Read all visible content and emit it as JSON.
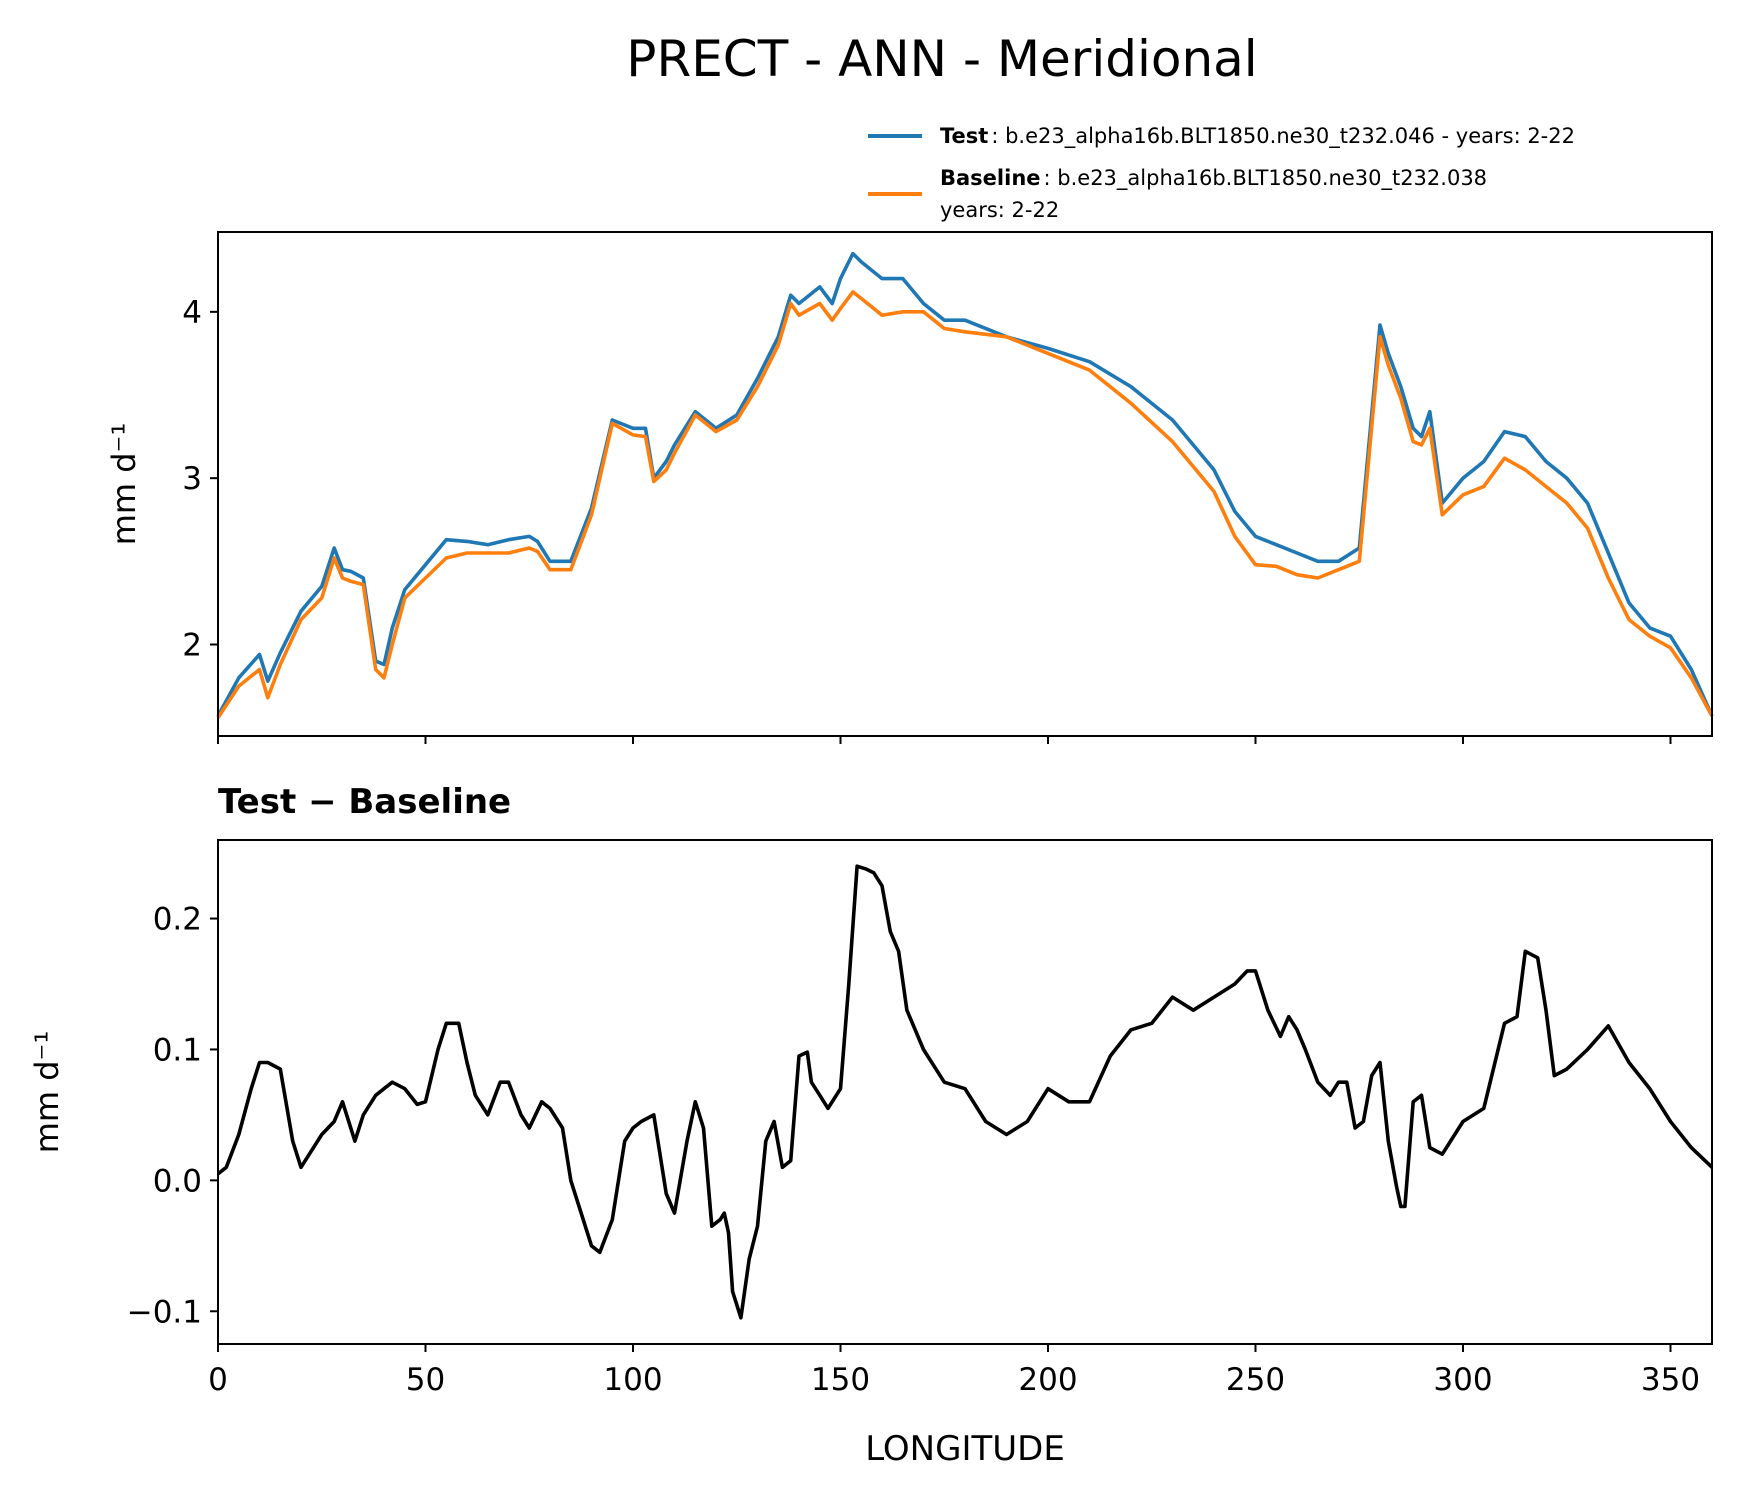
{
  "figure_title": "PRECT - ANN - Meridional",
  "legend": {
    "test_name": "Test",
    "test_desc": ": b.e23_alpha16b.BLT1850.ne30_t232.046 - years: 2-22",
    "baseline_name": "Baseline",
    "baseline_desc_line1": ": b.e23_alpha16b.BLT1850.ne30_t232.038",
    "baseline_desc_line2": "years: 2-22"
  },
  "diff_title": "Test − Baseline",
  "colors": {
    "test": "#1f77b4",
    "baseline": "#ff7f0e",
    "diff": "#000000"
  },
  "chart_data": [
    {
      "type": "line",
      "title": "",
      "xlabel": "",
      "ylabel": "mm d⁻¹",
      "xlim": [
        0,
        360
      ],
      "ylim": [
        1.45,
        4.48
      ],
      "yticks": [
        2,
        3,
        4
      ],
      "yticklabels": [
        "2",
        "3",
        "4"
      ],
      "xticks": [
        0,
        50,
        100,
        150,
        200,
        250,
        300,
        350
      ],
      "x": [
        0,
        5,
        10,
        12,
        15,
        20,
        25,
        28,
        30,
        32,
        35,
        38,
        40,
        42,
        45,
        50,
        55,
        60,
        65,
        70,
        75,
        77,
        80,
        85,
        90,
        95,
        100,
        103,
        105,
        108,
        110,
        115,
        120,
        125,
        130,
        135,
        138,
        140,
        145,
        148,
        150,
        153,
        155,
        160,
        165,
        170,
        175,
        180,
        190,
        200,
        210,
        220,
        230,
        240,
        245,
        250,
        255,
        260,
        265,
        270,
        275,
        280,
        282,
        285,
        288,
        290,
        292,
        295,
        300,
        305,
        310,
        315,
        320,
        325,
        330,
        335,
        340,
        345,
        350,
        355,
        360
      ],
      "series": [
        {
          "name": "Test",
          "values": [
            1.57,
            1.8,
            1.94,
            1.78,
            1.95,
            2.2,
            2.35,
            2.58,
            2.45,
            2.44,
            2.4,
            1.9,
            1.88,
            2.1,
            2.33,
            2.48,
            2.63,
            2.62,
            2.6,
            2.63,
            2.65,
            2.62,
            2.5,
            2.5,
            2.82,
            3.35,
            3.3,
            3.3,
            3.0,
            3.1,
            3.2,
            3.4,
            3.3,
            3.38,
            3.6,
            3.85,
            4.1,
            4.05,
            4.15,
            4.05,
            4.2,
            4.35,
            4.3,
            4.2,
            4.2,
            4.05,
            3.95,
            3.95,
            3.85,
            3.78,
            3.7,
            3.55,
            3.35,
            3.05,
            2.8,
            2.65,
            2.6,
            2.55,
            2.5,
            2.5,
            2.58,
            3.92,
            3.75,
            3.55,
            3.3,
            3.25,
            3.4,
            2.85,
            3.0,
            3.1,
            3.28,
            3.25,
            3.1,
            3.0,
            2.85,
            2.55,
            2.25,
            2.1,
            2.05,
            1.85,
            1.57
          ]
        },
        {
          "name": "Baseline",
          "values": [
            1.56,
            1.75,
            1.85,
            1.68,
            1.88,
            2.15,
            2.28,
            2.52,
            2.4,
            2.38,
            2.36,
            1.85,
            1.8,
            2.0,
            2.28,
            2.4,
            2.52,
            2.55,
            2.55,
            2.55,
            2.58,
            2.56,
            2.45,
            2.45,
            2.78,
            3.33,
            3.26,
            3.25,
            2.98,
            3.05,
            3.15,
            3.38,
            3.28,
            3.35,
            3.55,
            3.8,
            4.05,
            3.98,
            4.05,
            3.95,
            4.02,
            4.12,
            4.08,
            3.98,
            4.0,
            4.0,
            3.9,
            3.88,
            3.85,
            3.75,
            3.65,
            3.45,
            3.22,
            2.92,
            2.65,
            2.48,
            2.47,
            2.42,
            2.4,
            2.45,
            2.5,
            3.85,
            3.68,
            3.48,
            3.22,
            3.2,
            3.3,
            2.78,
            2.9,
            2.95,
            3.12,
            3.05,
            2.95,
            2.85,
            2.7,
            2.4,
            2.15,
            2.05,
            1.98,
            1.8,
            1.57
          ]
        }
      ]
    },
    {
      "type": "line",
      "title": "Test − Baseline",
      "xlabel": "LONGITUDE",
      "ylabel": "mm d⁻¹",
      "xlim": [
        0,
        360
      ],
      "ylim": [
        -0.125,
        0.26
      ],
      "yticks": [
        -0.1,
        0.0,
        0.1,
        0.2
      ],
      "yticklabels": [
        "−0.1",
        "0.0",
        "0.1",
        "0.2"
      ],
      "xticks": [
        0,
        50,
        100,
        150,
        200,
        250,
        300,
        350
      ],
      "xticklabels": [
        "0",
        "50",
        "100",
        "150",
        "200",
        "250",
        "300",
        "350"
      ],
      "x": [
        0,
        2,
        5,
        8,
        10,
        12,
        15,
        18,
        20,
        22,
        25,
        28,
        30,
        33,
        35,
        38,
        40,
        42,
        45,
        48,
        50,
        53,
        55,
        58,
        60,
        62,
        65,
        68,
        70,
        73,
        75,
        78,
        80,
        83,
        85,
        88,
        90,
        92,
        95,
        98,
        100,
        102,
        105,
        108,
        110,
        113,
        115,
        117,
        119,
        121,
        122,
        123,
        124,
        126,
        128,
        130,
        132,
        134,
        136,
        138,
        140,
        142,
        143,
        145,
        147,
        150,
        152,
        154,
        156,
        158,
        160,
        162,
        164,
        166,
        170,
        175,
        180,
        185,
        190,
        195,
        200,
        205,
        210,
        215,
        220,
        225,
        230,
        235,
        240,
        245,
        248,
        250,
        253,
        256,
        258,
        260,
        262,
        265,
        268,
        270,
        272,
        274,
        276,
        278,
        280,
        282,
        284,
        285,
        286,
        288,
        290,
        292,
        295,
        300,
        305,
        310,
        313,
        315,
        318,
        320,
        322,
        325,
        330,
        335,
        340,
        345,
        350,
        355,
        360
      ],
      "series": [
        {
          "name": "Test − Baseline",
          "values": [
            0.005,
            0.01,
            0.035,
            0.07,
            0.09,
            0.09,
            0.085,
            0.03,
            0.01,
            0.02,
            0.035,
            0.045,
            0.06,
            0.03,
            0.05,
            0.065,
            0.07,
            0.075,
            0.07,
            0.058,
            0.06,
            0.1,
            0.12,
            0.12,
            0.09,
            0.065,
            0.05,
            0.075,
            0.075,
            0.05,
            0.04,
            0.06,
            0.055,
            0.04,
            0.0,
            -0.03,
            -0.05,
            -0.055,
            -0.03,
            0.03,
            0.04,
            0.045,
            0.05,
            -0.01,
            -0.025,
            0.03,
            0.06,
            0.04,
            -0.035,
            -0.03,
            -0.025,
            -0.04,
            -0.085,
            -0.105,
            -0.06,
            -0.035,
            0.03,
            0.045,
            0.01,
            0.015,
            0.095,
            0.098,
            0.075,
            0.065,
            0.055,
            0.07,
            0.15,
            0.24,
            0.238,
            0.235,
            0.225,
            0.19,
            0.175,
            0.13,
            0.1,
            0.075,
            0.07,
            0.045,
            0.035,
            0.045,
            0.07,
            0.06,
            0.06,
            0.095,
            0.115,
            0.12,
            0.14,
            0.13,
            0.14,
            0.15,
            0.16,
            0.16,
            0.13,
            0.11,
            0.125,
            0.115,
            0.1,
            0.075,
            0.065,
            0.075,
            0.075,
            0.04,
            0.045,
            0.08,
            0.09,
            0.03,
            -0.005,
            -0.02,
            -0.02,
            0.06,
            0.065,
            0.025,
            0.02,
            0.045,
            0.055,
            0.12,
            0.125,
            0.175,
            0.17,
            0.13,
            0.08,
            0.085,
            0.1,
            0.118,
            0.09,
            0.07,
            0.045,
            0.025,
            0.01
          ]
        }
      ]
    }
  ]
}
